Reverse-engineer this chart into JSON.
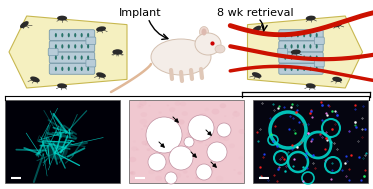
{
  "title_implant": "Implant",
  "title_retrieval": "8 wk retrieval",
  "bg_color": "#ffffff",
  "matrix_fill": "#f5f0c0",
  "matrix_edge": "#c8b850",
  "channel_color": "#b8ccd8",
  "channel_edge": "#7799aa",
  "cell_color": "#1a6a5e",
  "vessel_color": "#cc1100",
  "cyan_color": "#00d4c8",
  "panel1_bg": "#000008",
  "panel2_bg": "#f0c8d0",
  "panel3_bg": "#050510",
  "spore_color": "#2a2a2a",
  "scale_bar_color": "#ffffff",
  "arrow_color": "#111111",
  "bracket_color": "#111111"
}
